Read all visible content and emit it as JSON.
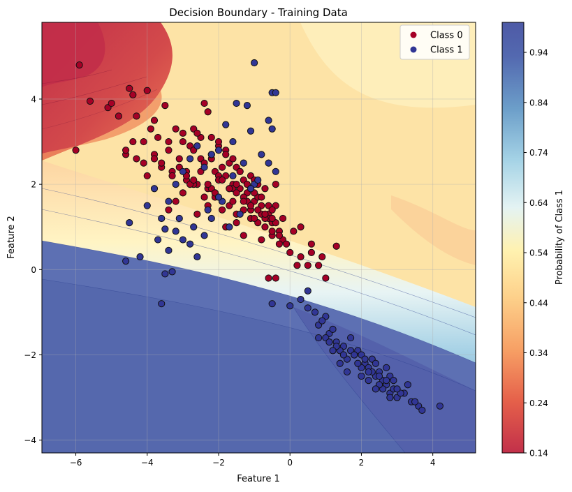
{
  "chart_data": {
    "type": "scatter",
    "title": "Decision Boundary - Training Data",
    "xlabel": "Feature 1",
    "ylabel": "Feature 2",
    "xlim": [
      -6.95,
      5.2
    ],
    "ylim": [
      -4.3,
      5.8
    ],
    "xticks": [
      -6,
      -4,
      -2,
      0,
      2,
      4
    ],
    "yticks": [
      -4,
      -2,
      0,
      2,
      4
    ],
    "xtick_labels": [
      "−6",
      "−4",
      "−2",
      "0",
      "2",
      "4"
    ],
    "ytick_labels": [
      "−4",
      "−2",
      "0",
      "2",
      "4"
    ],
    "grid": true,
    "legend_position": "top-right",
    "background": "filled probability contour (RdYlBu colormap) — red where Class 1 is unlikely, blue where likely",
    "colorbar": {
      "label": "Probability of Class 1",
      "range": [
        0.14,
        1.0
      ],
      "ticks": [
        0.14,
        0.24,
        0.34,
        0.44,
        0.54,
        0.64,
        0.74,
        0.84,
        0.94
      ]
    },
    "series": [
      {
        "name": "Class 0",
        "color": "#a50026",
        "x": [
          -5.9,
          -6.0,
          -5.6,
          -5.1,
          -5.0,
          -4.8,
          -4.6,
          -4.5,
          -4.4,
          -4.4,
          -4.3,
          -4.1,
          -4.0,
          -3.9,
          -3.8,
          -3.7,
          -3.5,
          -3.4,
          -3.2,
          -3.0,
          -2.8,
          -2.7,
          -2.5,
          -2.4,
          -2.3,
          -2.2,
          -2.1,
          -2.0,
          -1.9,
          -1.8,
          -1.7,
          -1.6,
          -1.5,
          -1.4,
          -1.3,
          -1.2,
          -1.1,
          -1.0,
          -0.9,
          -0.8,
          -0.7,
          -0.6,
          -0.5,
          -0.4,
          -0.3,
          -0.2,
          0.0,
          0.1,
          0.3,
          0.5,
          0.6,
          0.8,
          0.9,
          1.0,
          1.3,
          -4.6,
          -4.3,
          -4.0,
          -3.8,
          -3.6,
          -3.4,
          -3.3,
          -3.1,
          -2.9,
          -2.7,
          -2.6,
          -2.5,
          -2.3,
          -2.2,
          -2.1,
          -2.0,
          -1.9,
          -1.8,
          -1.7,
          -1.6,
          -1.5,
          -1.4,
          -1.3,
          -1.2,
          -1.1,
          -1.0,
          -0.9,
          -0.8,
          -0.7,
          -0.6,
          -0.5,
          -0.4,
          -0.3,
          -0.1,
          0.2,
          -3.0,
          -2.9,
          -2.7,
          -2.6,
          -2.4,
          -2.3,
          -2.2,
          -2.1,
          -2.0,
          -1.9,
          -1.8,
          -1.6,
          -1.5,
          -1.4,
          -1.3,
          -1.2,
          -1.1,
          -1.0,
          -0.9,
          -0.8,
          -0.6,
          -0.5,
          -0.3,
          -0.2,
          0.3,
          0.6,
          -3.4,
          -3.2,
          -3.0,
          -2.8,
          -2.6,
          -2.4,
          -2.2,
          -2.0,
          -1.8,
          -1.7,
          -1.6,
          -1.5,
          -1.3,
          -1.1,
          -1.0,
          -0.8,
          -0.7,
          -0.5,
          -0.4,
          -0.6,
          -0.4,
          -4.1,
          -3.8,
          -3.6,
          -3.3,
          -3.1,
          -2.9,
          -2.7,
          -2.5,
          -2.3,
          -2.1,
          -1.9,
          -1.7,
          -1.5,
          -1.3,
          -1.1,
          -0.9,
          -0.7,
          -0.5
        ],
        "y": [
          4.8,
          2.8,
          3.95,
          3.8,
          3.9,
          3.6,
          2.7,
          4.25,
          4.1,
          3.0,
          3.6,
          2.5,
          4.2,
          3.3,
          3.5,
          3.1,
          3.85,
          3.0,
          3.3,
          3.2,
          2.9,
          3.3,
          2.6,
          3.9,
          3.7,
          2.6,
          2.3,
          2.9,
          2.4,
          2.2,
          2.5,
          2.0,
          2.4,
          1.9,
          2.1,
          1.8,
          2.2,
          1.6,
          1.7,
          1.3,
          1.9,
          1.5,
          1.1,
          1.5,
          0.9,
          0.7,
          0.4,
          0.9,
          0.3,
          0.1,
          0.6,
          0.1,
          0.3,
          -0.2,
          0.55,
          2.8,
          2.6,
          2.2,
          2.7,
          2.4,
          2.8,
          2.3,
          2.6,
          2.1,
          2.8,
          2.0,
          3.1,
          1.9,
          2.7,
          1.8,
          3.0,
          1.6,
          2.8,
          1.5,
          2.6,
          1.3,
          2.3,
          1.4,
          2.0,
          1.2,
          1.8,
          1.1,
          1.5,
          1.0,
          1.3,
          0.8,
          1.1,
          0.8,
          0.6,
          0.1,
          3.0,
          2.3,
          2.0,
          3.2,
          2.5,
          1.5,
          3.1,
          1.7,
          2.2,
          1.4,
          2.7,
          1.9,
          1.1,
          2.3,
          0.8,
          1.6,
          1.9,
          1.2,
          2.0,
          0.7,
          1.2,
          0.9,
          0.6,
          1.2,
          1.0,
          0.4,
          1.4,
          1.6,
          1.8,
          2.0,
          1.3,
          1.7,
          1.9,
          2.1,
          1.0,
          1.9,
          1.6,
          2.0,
          1.7,
          1.4,
          2.1,
          1.7,
          1.2,
          1.4,
          2.0,
          -0.2,
          -0.2,
          3.0,
          2.6,
          2.5,
          2.2,
          2.4,
          2.2,
          2.1,
          2.3,
          2.0,
          1.8,
          2.1,
          1.9,
          1.8,
          1.6,
          1.5,
          1.4,
          1.3,
          1.2
        ]
      },
      {
        "name": "Class 1",
        "color": "#313695",
        "x": [
          -1.0,
          -0.5,
          -0.4,
          -0.6,
          -0.5,
          -1.1,
          -1.2,
          -1.5,
          -1.6,
          -1.8,
          -2.0,
          -2.2,
          -2.4,
          -2.6,
          -2.8,
          -3.0,
          -3.2,
          -3.4,
          -3.6,
          -3.8,
          -4.2,
          -4.0,
          -4.5,
          -4.6,
          -3.7,
          -3.4,
          -3.5,
          -3.3,
          -3.6,
          -3.0,
          -2.8,
          -2.6,
          -3.2,
          -2.7,
          -2.4,
          -2.2,
          -1.9,
          -1.6,
          -1.3,
          -1.0,
          -0.8,
          -0.6,
          -0.4,
          -1.7,
          -1.4,
          -1.1,
          -0.9,
          -2.0,
          -2.3,
          -3.1,
          -3.5,
          -0.5,
          0.0,
          0.3,
          0.5,
          0.5,
          0.7,
          0.8,
          1.0,
          1.1,
          1.3,
          1.5,
          1.7,
          1.9,
          2.0,
          2.1,
          2.2,
          2.3,
          2.4,
          2.5,
          2.6,
          2.7,
          2.8,
          2.9,
          3.0,
          3.2,
          3.4,
          3.6,
          3.7,
          4.2,
          0.9,
          1.2,
          1.4,
          1.6,
          1.8,
          2.0,
          2.2,
          2.4,
          2.6,
          2.8,
          3.0,
          3.3,
          3.5,
          1.0,
          1.3,
          1.5,
          1.7,
          1.9,
          2.1,
          2.3,
          2.5,
          2.7,
          2.9,
          3.1,
          1.2,
          1.6,
          2.0,
          2.4,
          2.7,
          3.0,
          0.8,
          1.1,
          1.4,
          1.8,
          2.2,
          2.5,
          2.8
        ],
        "y": [
          4.85,
          4.15,
          4.15,
          3.5,
          3.3,
          3.25,
          3.85,
          3.9,
          3.0,
          3.4,
          2.8,
          2.7,
          2.4,
          2.9,
          2.6,
          2.3,
          2.0,
          1.6,
          1.2,
          1.9,
          0.3,
          1.5,
          1.1,
          0.2,
          0.7,
          0.45,
          -0.1,
          -0.05,
          -0.8,
          0.7,
          0.6,
          0.3,
          0.9,
          1.0,
          0.8,
          1.2,
          1.6,
          2.2,
          2.5,
          2.0,
          2.7,
          2.5,
          2.3,
          1.0,
          1.3,
          1.9,
          2.1,
          1.7,
          1.4,
          1.2,
          0.95,
          -0.8,
          -0.85,
          -0.7,
          -0.5,
          -0.9,
          -1.0,
          -1.3,
          -1.1,
          -1.5,
          -1.7,
          -1.8,
          -1.6,
          -1.9,
          -2.0,
          -2.2,
          -2.3,
          -2.1,
          -2.5,
          -2.4,
          -2.6,
          -2.7,
          -2.9,
          -2.8,
          -3.0,
          -2.9,
          -3.1,
          -3.2,
          -3.3,
          -3.2,
          -1.2,
          -1.4,
          -1.9,
          -2.1,
          -2.0,
          -2.3,
          -2.6,
          -2.2,
          -2.8,
          -2.5,
          -3.0,
          -2.7,
          -3.1,
          -1.6,
          -1.8,
          -2.0,
          -1.9,
          -2.2,
          -2.1,
          -2.4,
          -2.7,
          -2.3,
          -2.6,
          -2.9,
          -1.9,
          -2.4,
          -2.5,
          -2.8,
          -2.6,
          -2.8,
          -1.6,
          -1.7,
          -2.2,
          -2.0,
          -2.4,
          -2.5,
          -3.0
        ]
      }
    ]
  }
}
